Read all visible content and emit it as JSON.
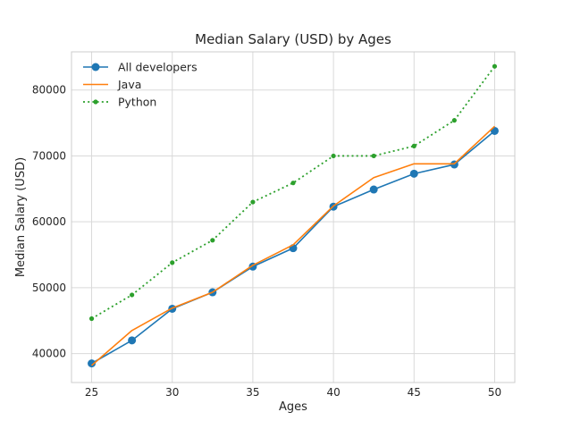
{
  "chart_data": {
    "type": "line",
    "title": "Median Salary (USD) by Ages",
    "xlabel": "Ages",
    "ylabel": "Median Salary (USD)",
    "x": [
      25,
      27.5,
      30,
      32.5,
      35,
      37.5,
      40,
      42.5,
      45,
      47.5,
      50
    ],
    "xlim": [
      23.75,
      51.25
    ],
    "ylim": [
      35600,
      85800
    ],
    "xticks": [
      25,
      30,
      35,
      40,
      45,
      50
    ],
    "yticks": [
      40000,
      50000,
      60000,
      70000,
      80000
    ],
    "grid": true,
    "legend_position": "top-left",
    "series": [
      {
        "name": "All developers",
        "color": "#1f77b4",
        "line_style": "solid",
        "marker": "circle-large",
        "values": [
          38500,
          42000,
          46800,
          49300,
          53200,
          56000,
          62300,
          64900,
          67300,
          68700,
          73800
        ]
      },
      {
        "name": "Java",
        "color": "#ff7f0e",
        "line_style": "solid",
        "marker": "none",
        "values": [
          38200,
          43500,
          46900,
          49300,
          53400,
          56500,
          62400,
          66700,
          68800,
          68800,
          74500
        ]
      },
      {
        "name": "Python",
        "color": "#2ca02c",
        "line_style": "dotted",
        "marker": "circle-small",
        "values": [
          45300,
          48900,
          53800,
          57200,
          63000,
          65900,
          70000,
          70000,
          71500,
          75400,
          83600
        ]
      }
    ]
  }
}
